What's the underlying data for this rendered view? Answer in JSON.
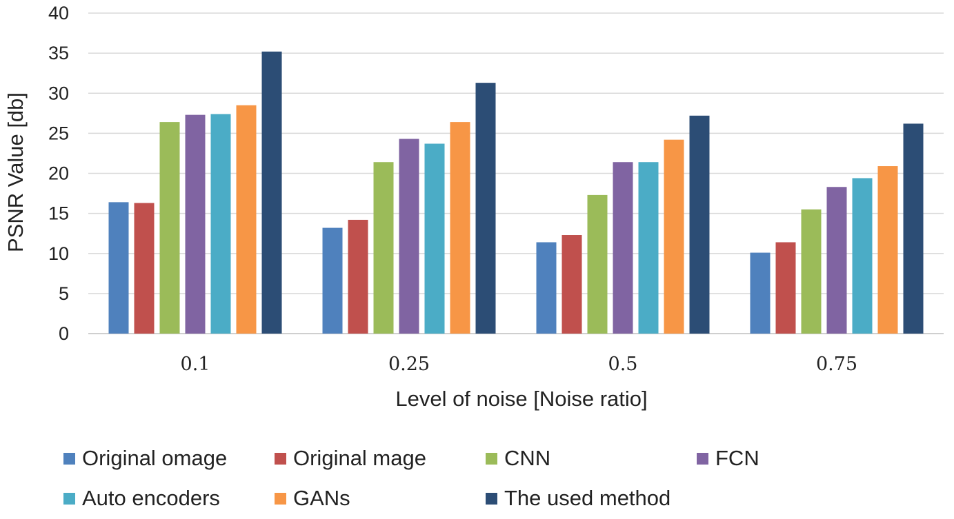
{
  "chart_data": {
    "type": "bar",
    "title": "",
    "xlabel": "Level of noise [Noise ratio]",
    "ylabel": "PSNR Value [db]",
    "ylim": [
      0,
      40
    ],
    "yticks": [
      0,
      5,
      10,
      15,
      20,
      25,
      30,
      35,
      40
    ],
    "categories": [
      "0.1",
      "0.25",
      "0.5",
      "0.75"
    ],
    "grid": true,
    "legend_position": "bottom",
    "series": [
      {
        "name": "Original omage",
        "color": "#4F81BD",
        "values": [
          16.4,
          13.2,
          11.4,
          10.1
        ]
      },
      {
        "name": "Original mage",
        "color": "#C0504D",
        "values": [
          16.3,
          14.2,
          12.3,
          11.4
        ]
      },
      {
        "name": "CNN",
        "color": "#9BBB59",
        "values": [
          26.4,
          21.4,
          17.3,
          15.5
        ]
      },
      {
        "name": "FCN",
        "color": "#8064A2",
        "values": [
          27.3,
          24.3,
          21.4,
          18.3
        ]
      },
      {
        "name": "Auto encoders",
        "color": "#4BACC6",
        "values": [
          27.4,
          23.7,
          21.4,
          19.4
        ]
      },
      {
        "name": "GANs",
        "color": "#F79646",
        "values": [
          28.5,
          26.4,
          24.2,
          20.9
        ]
      },
      {
        "name": "The used method",
        "color": "#2C4D75",
        "values": [
          35.2,
          31.3,
          27.2,
          26.2
        ]
      }
    ]
  }
}
